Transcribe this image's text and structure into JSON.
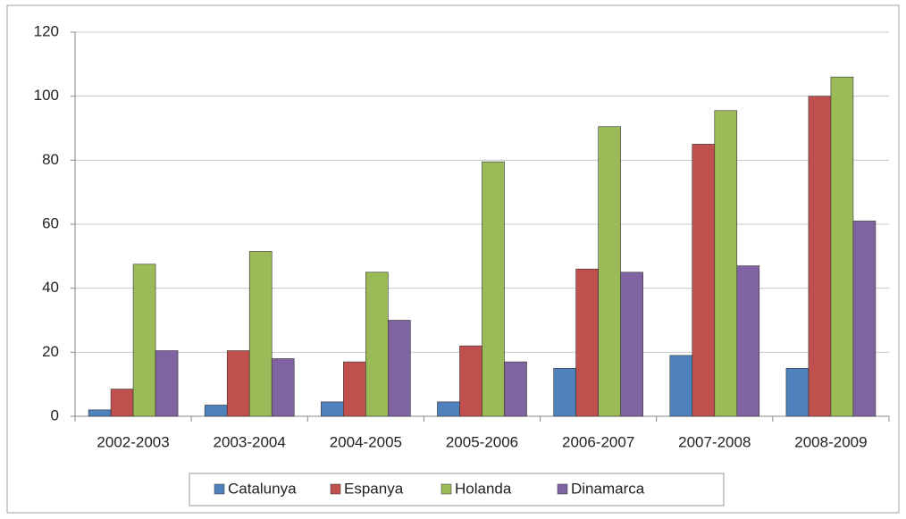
{
  "chart_data": {
    "type": "bar",
    "categories": [
      "2002-2003",
      "2003-2004",
      "2004-2005",
      "2005-2006",
      "2006-2007",
      "2007-2008",
      "2008-2009"
    ],
    "series": [
      {
        "name": "Catalunya",
        "color": "#4f81bd",
        "values": [
          2,
          3.5,
          4.5,
          4.5,
          15,
          19,
          15
        ]
      },
      {
        "name": "Espanya",
        "color": "#c0504d",
        "values": [
          8.5,
          20.5,
          17,
          22,
          46,
          85,
          100
        ]
      },
      {
        "name": "Holanda",
        "color": "#9bbb59",
        "values": [
          47.5,
          51.5,
          45,
          79.5,
          90.5,
          95.5,
          106
        ]
      },
      {
        "name": "Dinamarca",
        "color": "#8064a2",
        "values": [
          20.5,
          18,
          30,
          17,
          45,
          47,
          61
        ]
      }
    ],
    "ylim": [
      0,
      120
    ],
    "yticks": [
      0,
      20,
      40,
      60,
      80,
      100,
      120
    ],
    "grid": true,
    "legend": "bottom"
  }
}
